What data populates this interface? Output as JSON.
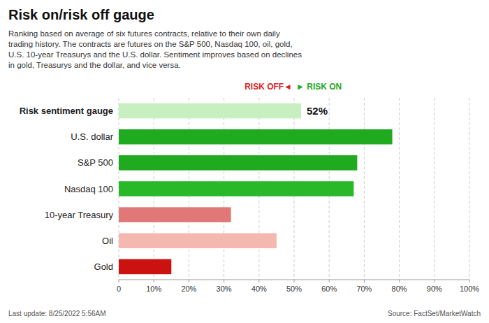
{
  "chart_data": {
    "type": "bar",
    "orientation": "horizontal",
    "title": "Risk on/risk off gauge",
    "subtitle": "Ranking based on average of six futures contracts, relative to their own daily\ntrading history. The contracts are futures on the S&P 500, Nasdaq 100, oil, gold,\nU.S. 10-year Treasurys and the U.S. dollar. Sentiment improves based on declines\nin gold, Treasurys and the dollar, and vice versa.",
    "categories": [
      "Risk sentiment gauge",
      "U.S. dollar",
      "S&P 500",
      "Nasdaq 100",
      "10-year Treasury",
      "Oil",
      "Gold"
    ],
    "values": [
      52,
      78,
      68,
      67,
      32,
      45,
      15
    ],
    "colors": [
      "#c8efc0",
      "#1faa1f",
      "#1faa1f",
      "#28b828",
      "#e07878",
      "#f5b8b0",
      "#cc1111"
    ],
    "xlim": [
      0,
      100
    ],
    "xticks": [
      0,
      {
        "value": 10,
        "label": "10%"
      },
      {
        "value": 20,
        "label": "20%"
      },
      {
        "value": 30,
        "label": "30%"
      },
      {
        "value": 40,
        "label": "40%"
      },
      {
        "value": 50,
        "label": "50%"
      },
      {
        "value": 60,
        "label": "60%"
      },
      {
        "value": 70,
        "label": "70%"
      },
      {
        "value": 80,
        "label": "80%"
      },
      {
        "value": 90,
        "label": "90%"
      },
      {
        "value": 100,
        "label": "100%"
      }
    ],
    "grid": true,
    "annotations": [
      {
        "text": "52%",
        "x": 52,
        "y": "Risk sentiment gauge"
      },
      {
        "text": "RISK OFF◄",
        "x": 50,
        "color": "#dd2222"
      },
      {
        "text": "► RISK ON",
        "x": 50,
        "color": "#22aa22"
      }
    ],
    "footer": [
      "Last update: 8/25/2022 5:56AM",
      "Source: FactSet/MarketWatch"
    ]
  }
}
